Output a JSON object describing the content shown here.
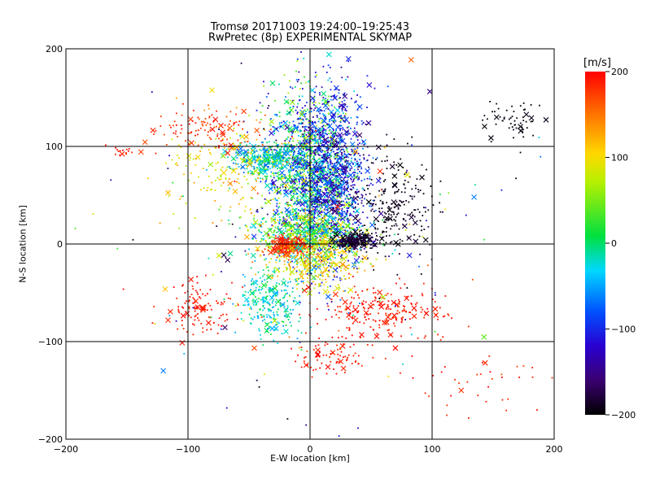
{
  "chart_data": {
    "type": "scatter",
    "title": "Tromsø 20171003 19:24:00–19:25:43",
    "subtitle": "RwPretec (8p) EXPERIMENTAL SKYMAP",
    "xlabel": "E-W location [km]",
    "ylabel": "N-S location [km]",
    "xlim": [
      -200,
      200
    ],
    "ylim": [
      -200,
      200
    ],
    "x_ticks": [
      -200,
      -100,
      0,
      100,
      200
    ],
    "y_ticks": [
      -200,
      -100,
      0,
      100,
      200
    ],
    "x_tick_labels": [
      "−200",
      "−100",
      "0",
      "100",
      "200"
    ],
    "y_tick_labels": [
      "−200",
      "−100",
      "0",
      "100",
      "200"
    ],
    "grid": true,
    "colorbar": {
      "label": "[m/s]",
      "range": [
        -200,
        200
      ],
      "ticks": [
        200,
        100,
        0,
        -100,
        -200
      ],
      "tick_labels": [
        "200",
        "100",
        "0",
        "−100",
        "−200"
      ],
      "colormap": [
        "#000000",
        "#400060",
        "#2a00d0",
        "#0050ff",
        "#00d8ff",
        "#00e050",
        "#c8f000",
        "#ffd800",
        "#ff7000",
        "#ff0000"
      ]
    },
    "markers": [
      "dot",
      "x"
    ],
    "clusters": [
      {
        "x": 0,
        "y": 72,
        "sx": 18,
        "sy": 42,
        "count": 1600,
        "value_range": [
          -150,
          80
        ]
      },
      {
        "x": 20,
        "y": 65,
        "sx": 14,
        "sy": 45,
        "count": 900,
        "value_range": [
          -170,
          -60
        ]
      },
      {
        "x": -35,
        "y": 88,
        "sx": 15,
        "sy": 8,
        "count": 350,
        "value_range": [
          -80,
          40
        ]
      },
      {
        "x": 0,
        "y": 10,
        "sx": 22,
        "sy": 12,
        "count": 600,
        "value_range": [
          -60,
          120
        ]
      },
      {
        "x": -18,
        "y": -2,
        "sx": 8,
        "sy": 5,
        "count": 250,
        "value_range": [
          170,
          200
        ]
      },
      {
        "x": 35,
        "y": 3,
        "sx": 8,
        "sy": 4,
        "count": 250,
        "value_range": [
          -200,
          -170
        ]
      },
      {
        "x": 5,
        "y": -20,
        "sx": 18,
        "sy": 12,
        "count": 300,
        "value_range": [
          60,
          140
        ]
      },
      {
        "x": -35,
        "y": -60,
        "sx": 12,
        "sy": 18,
        "count": 250,
        "value_range": [
          -60,
          20
        ]
      },
      {
        "x": 60,
        "y": -70,
        "sx": 25,
        "sy": 14,
        "count": 220,
        "value_range": [
          180,
          200
        ]
      },
      {
        "x": -90,
        "y": -65,
        "sx": 14,
        "sy": 12,
        "count": 120,
        "value_range": [
          180,
          200
        ]
      },
      {
        "x": 15,
        "y": -115,
        "sx": 12,
        "sy": 12,
        "count": 80,
        "value_range": [
          180,
          200
        ]
      },
      {
        "x": -85,
        "y": 115,
        "sx": 25,
        "sy": 12,
        "count": 120,
        "value_range": [
          160,
          200
        ]
      },
      {
        "x": -155,
        "y": 95,
        "sx": 6,
        "sy": 3,
        "count": 15,
        "value_range": [
          180,
          200
        ]
      },
      {
        "x": 70,
        "y": 40,
        "sx": 15,
        "sy": 28,
        "count": 220,
        "value_range": [
          -200,
          -180
        ]
      },
      {
        "x": 165,
        "y": 125,
        "sx": 12,
        "sy": 10,
        "count": 60,
        "value_range": [
          -200,
          -190
        ]
      },
      {
        "x": 150,
        "y": -140,
        "sx": 28,
        "sy": 15,
        "count": 40,
        "value_range": [
          170,
          200
        ]
      },
      {
        "x": -70,
        "y": 75,
        "sx": 25,
        "sy": 25,
        "count": 160,
        "value_range": [
          60,
          140
        ]
      },
      {
        "x": 0,
        "y": 0,
        "sx": 80,
        "sy": 80,
        "count": 220,
        "value_range": [
          -200,
          200
        ]
      }
    ]
  }
}
